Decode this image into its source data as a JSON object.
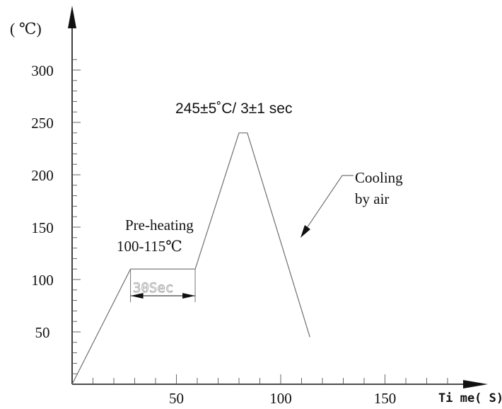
{
  "chart_data": {
    "type": "line",
    "y_unit_label": "( ℃)",
    "x_label": "Ti me( S)",
    "y_ticks": [
      {
        "value": 50,
        "label": "50"
      },
      {
        "value": 100,
        "label": "100"
      },
      {
        "value": 150,
        "label": "150"
      },
      {
        "value": 200,
        "label": "200"
      },
      {
        "value": 250,
        "label": "250"
      },
      {
        "value": 300,
        "label": "300"
      }
    ],
    "x_ticks": [
      {
        "value": 50,
        "label": "50"
      },
      {
        "value": 100,
        "label": "100"
      },
      {
        "value": 150,
        "label": "150"
      }
    ],
    "xlim": [
      0,
      200
    ],
    "ylim": [
      0,
      330
    ],
    "grid": false,
    "profile": {
      "x": [
        0,
        28,
        59,
        80,
        84,
        114
      ],
      "y": [
        0,
        110,
        110,
        240,
        240,
        45
      ]
    },
    "dwell": {
      "x_start": 28,
      "x_end": 59,
      "label": "30Sec"
    },
    "annotations": {
      "peak": "245±5˚C/ 3±1 sec",
      "preheat_line1": "Pre-heating",
      "preheat_line2": "100-115℃",
      "cooling_line1": "Cooling",
      "cooling_line2": "by air"
    }
  }
}
